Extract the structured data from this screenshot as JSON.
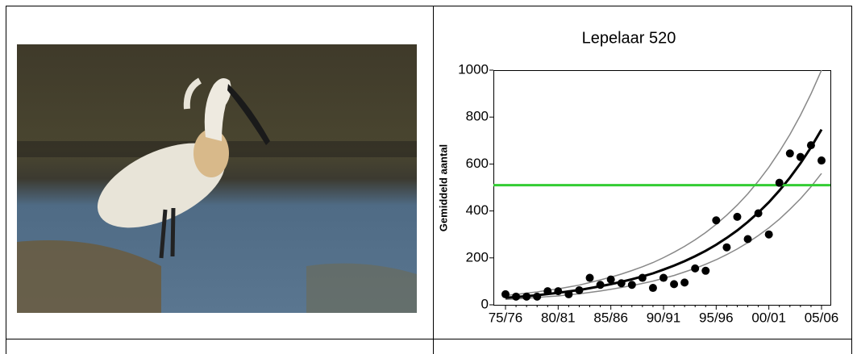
{
  "chart_data": {
    "type": "scatter",
    "title": "Lepelaar 520",
    "y_label": "Gemiddeld aantal",
    "categories": [
      "75/76",
      null,
      null,
      null,
      null,
      "80/81",
      null,
      null,
      null,
      null,
      "85/86",
      null,
      null,
      null,
      null,
      "90/91",
      null,
      null,
      null,
      null,
      "95/96",
      null,
      null,
      null,
      null,
      "00/01",
      null,
      null,
      null,
      null,
      "05/06"
    ],
    "series": [
      {
        "type": "line",
        "color": "#888888",
        "values": [
          40,
          44,
          50,
          55,
          62,
          68,
          76,
          84,
          95,
          106,
          118,
          131,
          146,
          162,
          180,
          201,
          224,
          249,
          277,
          308,
          343,
          382,
          425,
          473,
          527,
          586,
          653,
          726,
          808,
          899,
          1000
        ]
      },
      {
        "type": "line",
        "color": "#888888",
        "values": [
          23,
          25,
          28,
          31,
          35,
          38,
          43,
          47,
          53,
          59,
          66,
          74,
          82,
          91,
          101,
          113,
          125,
          140,
          155,
          173,
          192,
          214,
          238,
          265,
          295,
          328,
          365,
          407,
          452,
          503,
          560
        ]
      },
      {
        "type": "line",
        "color": "#000000",
        "values": [
          30,
          33,
          37,
          41,
          46,
          51,
          57,
          63,
          71,
          79,
          88,
          98,
          109,
          121,
          134,
          150,
          167,
          186,
          207,
          230,
          256,
          285,
          317,
          353,
          393,
          437,
          487,
          542,
          603,
          671,
          747
        ]
      },
      {
        "type": "scatter",
        "color": "#000000",
        "values": [
          45,
          35,
          35,
          35,
          58,
          58,
          45,
          62,
          115,
          85,
          108,
          92,
          85,
          115,
          72,
          115,
          88,
          95,
          155,
          145,
          360,
          245,
          375,
          280,
          390,
          300,
          520,
          645,
          630,
          680,
          615
        ]
      }
    ],
    "reference_line": {
      "value": 510,
      "color": "#33cc33"
    },
    "ylim": [
      0,
      1000
    ],
    "yticks": [
      0,
      200,
      400,
      600,
      800,
      1000
    ]
  }
}
